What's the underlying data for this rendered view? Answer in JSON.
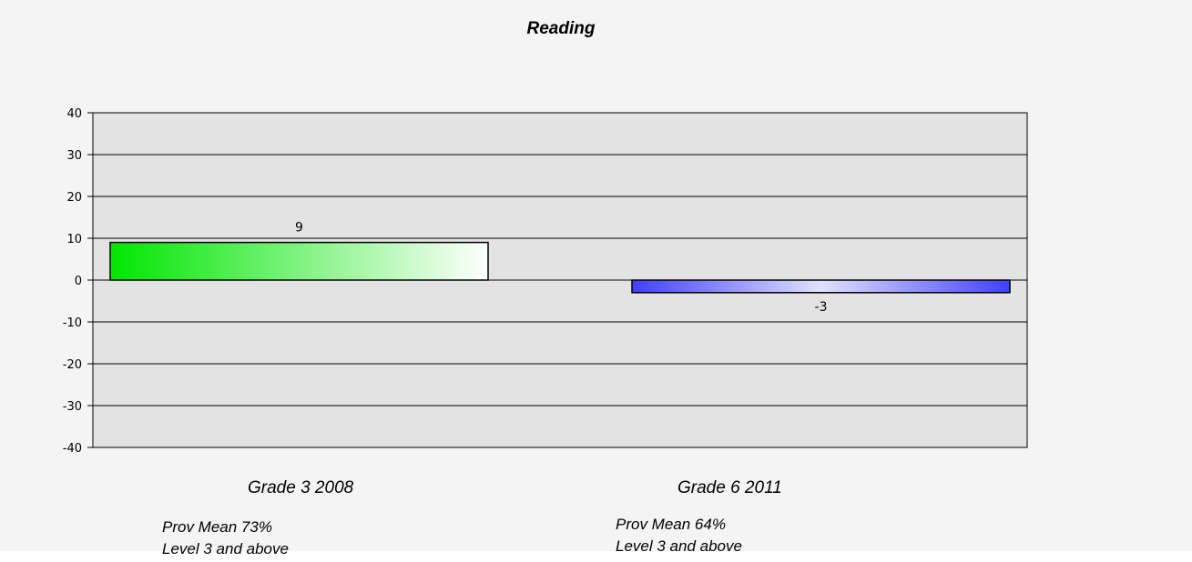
{
  "chart_data": {
    "type": "bar",
    "title": "Reading",
    "categories": [
      "Grade 3 2008",
      "Grade 6 2011"
    ],
    "values": [
      9,
      -3
    ],
    "data_labels": [
      "9",
      "-3"
    ],
    "bar_colors": [
      "#00e600",
      "#4040ff"
    ],
    "ylim": [
      -40,
      40
    ],
    "yticks": [
      "40",
      "30",
      "20",
      "10",
      "0",
      "-10",
      "-20",
      "-30",
      "-40"
    ],
    "grid": true,
    "xlabel": "",
    "ylabel": ""
  },
  "notes": [
    {
      "line1": "Prov Mean 73%",
      "line2": "Level 3 and above"
    },
    {
      "line1": "Prov Mean  64%",
      "line2": "Level 3 and above"
    }
  ],
  "colors": {
    "plot_background": "#e3e3e3",
    "panel_background": "#f4f4f4",
    "gridline": "#000000"
  }
}
